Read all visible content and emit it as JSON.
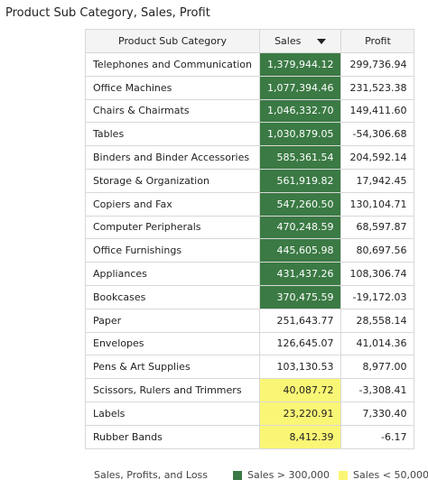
{
  "title": "Product Sub Category, Sales, Profit",
  "table": {
    "headers": [
      "Product Sub Category",
      "Sales",
      "Profit"
    ],
    "rows": [
      [
        "Telephones and Communication",
        "1,379,944.12",
        "299,736.94"
      ],
      [
        "Office Machines",
        "1,077,394.46",
        "231,523.38"
      ],
      [
        "Chairs & Chairmats",
        "1,046,332.70",
        "149,411.60"
      ],
      [
        "Tables",
        "1,030,879.05",
        "-54,306.68"
      ],
      [
        "Binders and Binder Accessories",
        "585,361.54",
        "204,592.14"
      ],
      [
        "Storage & Organization",
        "561,919.82",
        "17,942.45"
      ],
      [
        "Copiers and Fax",
        "547,260.50",
        "130,104.71"
      ],
      [
        "Computer Peripherals",
        "470,248.59",
        "68,597.87"
      ],
      [
        "Office Furnishings",
        "445,605.98",
        "80,697.56"
      ],
      [
        "Appliances",
        "431,437.26",
        "108,306.74"
      ],
      [
        "Bookcases",
        "370,475.59",
        "-19,172.03"
      ],
      [
        "Paper",
        "251,643.77",
        "28,558.14"
      ],
      [
        "Envelopes",
        "126,645.07",
        "41,014.36"
      ],
      [
        "Pens & Art Supplies",
        "103,130.53",
        "8,977.00"
      ],
      [
        "Scissors, Rulers and Trimmers",
        "40,087.72",
        "-3,308.41"
      ],
      [
        "Labels",
        "23,220.91",
        "7,330.40"
      ],
      [
        "Rubber Bands",
        "8,412.39",
        "-6.17"
      ]
    ],
    "sales_colors": [
      "#3b7a44",
      "#3b7a44",
      "#3b7a44",
      "#3b7a44",
      "#3b7a44",
      "#3b7a44",
      "#3b7a44",
      "#3b7a44",
      "#3b7a44",
      "#3b7a44",
      "#3b7a44",
      null,
      null,
      null,
      "#faf675",
      "#faf675",
      "#faf675"
    ]
  },
  "legend": {
    "title": "Sales, Profits, and Loss",
    "items": [
      {
        "label": "Sales > 300,000",
        "color": "#3b7a44"
      },
      {
        "label": "Sales < 50,000",
        "color": "#faf675"
      }
    ]
  }
}
